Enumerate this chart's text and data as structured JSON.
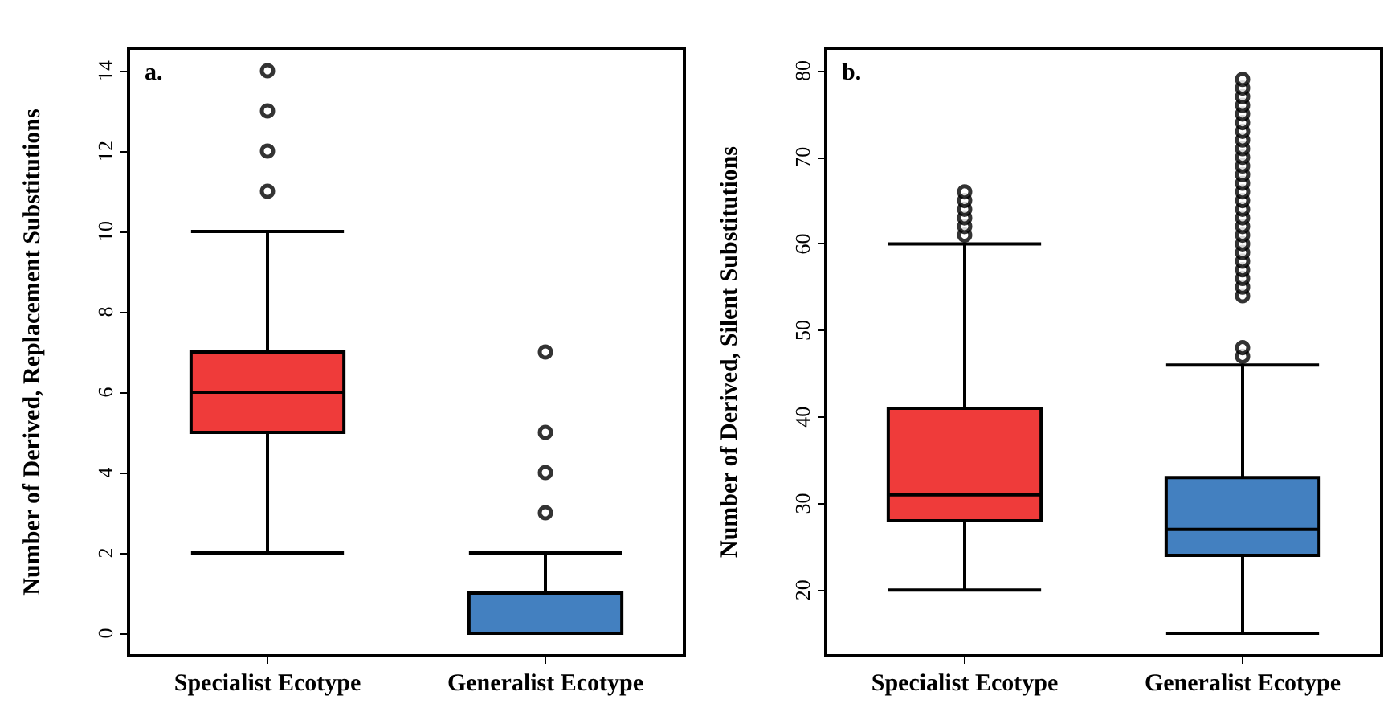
{
  "chart_data": [
    {
      "type": "box",
      "ylabel": "Number of Derived, Replacement Substitutions",
      "annotations": [
        "a."
      ],
      "categories": [
        "Specialist Ecotype",
        "Generalist Ecotype"
      ],
      "colors": [
        "#ef3b3a",
        "#4380c0"
      ],
      "boxes": [
        {
          "low": 2,
          "q1": 5,
          "median": 6,
          "q3": 7,
          "high": 10,
          "outliers": [
            11,
            12,
            13,
            14
          ]
        },
        {
          "low": 0,
          "q1": 0,
          "median": 1,
          "q3": 1,
          "high": 2,
          "outliers": [
            3,
            4,
            5,
            7
          ]
        }
      ],
      "ylim": [
        -0.56,
        14.56
      ],
      "yticks": [
        0,
        2,
        4,
        6,
        8,
        10,
        12,
        14
      ],
      "grid": false,
      "marker": "circle"
    },
    {
      "type": "box",
      "ylabel": "Number of Derived, Silent Substitutions",
      "annotations": [
        "b."
      ],
      "categories": [
        "Specialist Ecotype",
        "Generalist Ecotype"
      ],
      "colors": [
        "#ef3b3a",
        "#4380c0"
      ],
      "boxes": [
        {
          "low": 20,
          "q1": 28,
          "median": 31,
          "q3": 41,
          "high": 60,
          "outliers": [
            61,
            62,
            63,
            64,
            65,
            66
          ]
        },
        {
          "low": 15,
          "q1": 24,
          "median": 27,
          "q3": 33,
          "high": 46,
          "outliers": [
            47,
            48,
            54,
            55,
            56,
            57,
            58,
            59,
            60,
            61,
            62,
            63,
            64,
            65,
            66,
            67,
            68,
            69,
            70,
            71,
            72,
            73,
            74,
            75,
            76,
            77,
            78,
            79
          ]
        }
      ],
      "ylim": [
        12.4,
        82.6
      ],
      "yticks": [
        20,
        30,
        40,
        50,
        60,
        70,
        80
      ],
      "grid": false,
      "marker": "circle"
    }
  ]
}
